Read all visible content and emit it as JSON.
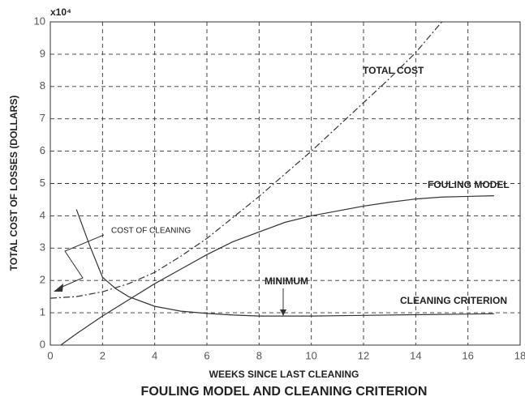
{
  "chart_data": {
    "type": "line",
    "title": "FOULING MODEL AND CLEANING CRITERION",
    "x_label": "WEEKS SINCE LAST CLEANING",
    "y_label": "TOTAL COST OF LOSSES (DOLLARS)",
    "y_multiplier": "x10⁴",
    "xlim": [
      0,
      18
    ],
    "xticks": [
      0,
      2,
      4,
      6,
      8,
      10,
      12,
      14,
      16,
      18
    ],
    "ylim": [
      0,
      10
    ],
    "yticks": [
      0,
      1,
      2,
      3,
      4,
      5,
      6,
      7,
      8,
      9,
      10
    ],
    "grid": true,
    "series": [
      {
        "name": "TOTAL COST",
        "color": "#333333",
        "style": "dashdot",
        "x": [
          0,
          1,
          2,
          3,
          4,
          5,
          6,
          7,
          8,
          9,
          10,
          11,
          12,
          13,
          14,
          15
        ],
        "values": [
          1.45,
          1.5,
          1.65,
          1.9,
          2.25,
          2.75,
          3.3,
          3.95,
          4.6,
          5.3,
          6.0,
          6.75,
          7.5,
          8.25,
          9.05,
          10.0
        ]
      },
      {
        "name": "FOULING MODEL",
        "color": "#333333",
        "style": "solid",
        "x": [
          0.4,
          1,
          2,
          3,
          4,
          5,
          6,
          7,
          8,
          9,
          10,
          11,
          12,
          13,
          14,
          15,
          16,
          17
        ],
        "values": [
          0,
          0.35,
          0.9,
          1.4,
          1.9,
          2.35,
          2.8,
          3.2,
          3.5,
          3.8,
          4.0,
          4.15,
          4.3,
          4.42,
          4.52,
          4.58,
          4.6,
          4.62
        ]
      },
      {
        "name": "CLEANING CRITERION",
        "color": "#333333",
        "style": "solid",
        "x": [
          1,
          1.5,
          2,
          2.5,
          3,
          4,
          5,
          6,
          7,
          8,
          9,
          10,
          12,
          14,
          16,
          17
        ],
        "values": [
          4.2,
          3.1,
          2.1,
          1.75,
          1.5,
          1.2,
          1.05,
          0.98,
          0.93,
          0.9,
          0.9,
          0.9,
          0.92,
          0.94,
          0.96,
          0.97
        ]
      }
    ],
    "annotations": [
      "COST OF CLEANING",
      "MINIMUM"
    ]
  }
}
